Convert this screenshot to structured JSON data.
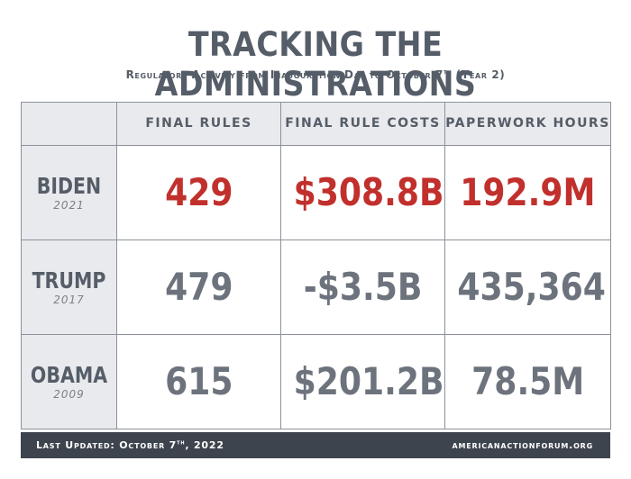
{
  "header": {
    "title": "TRACKING THE ADMINISTRATIONS",
    "subtitle_pre": "Regulatory Activity from Inauguration Day to October 7",
    "subtitle_sup": "th",
    "subtitle_post": " (Year 2)"
  },
  "table": {
    "columns": [
      "FINAL RULES",
      "FINAL RULE COSTS",
      "PAPERWORK HOURS"
    ],
    "rows": [
      {
        "name": "BIDEN",
        "year": "2021",
        "values": [
          "429",
          "$308.8B",
          "192.9M"
        ]
      },
      {
        "name": "TRUMP",
        "year": "2017",
        "values": [
          "479",
          "-$3.5B",
          "435,364"
        ]
      },
      {
        "name": "OBAMA",
        "year": "2009",
        "values": [
          "615",
          "$201.2B",
          "78.5M"
        ]
      }
    ]
  },
  "footer": {
    "updated_pre": "Last Updated: October 7",
    "updated_sup": "th",
    "updated_post": ", 2022",
    "site": "americanactionforum.org"
  },
  "colors": {
    "highlight": "#c1302c",
    "text": "#555d68",
    "header_bg": "#e9eaed",
    "footer_bg": "#3e444d"
  }
}
